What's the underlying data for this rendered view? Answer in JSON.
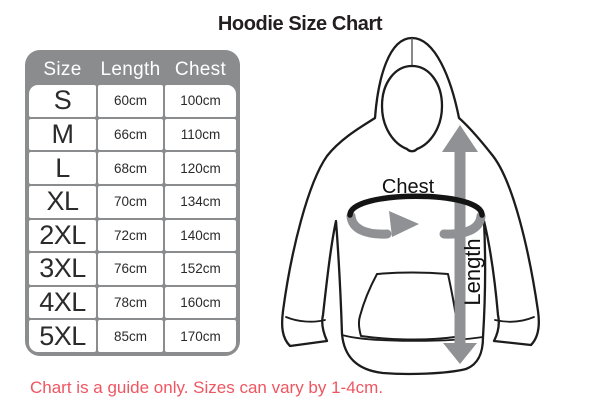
{
  "title": "Hoodie Size Chart",
  "table": {
    "headers": [
      "Size",
      "Length",
      "Chest"
    ],
    "rows": [
      [
        "S",
        "60cm",
        "100cm"
      ],
      [
        "M",
        "66cm",
        "110cm"
      ],
      [
        "L",
        "68cm",
        "120cm"
      ],
      [
        "XL",
        "70cm",
        "134cm"
      ],
      [
        "2XL",
        "72cm",
        "140cm"
      ],
      [
        "3XL",
        "76cm",
        "152cm"
      ],
      [
        "4XL",
        "78cm",
        "160cm"
      ],
      [
        "5XL",
        "85cm",
        "170cm"
      ]
    ]
  },
  "diagram": {
    "chest_label": "Chest",
    "length_label": "Length"
  },
  "footer": {
    "note": "Chart is a guide only. Sizes can vary by 1-4cm."
  },
  "colors": {
    "table_gray": "#8a8c8e",
    "arrow_gray": "#8f9194",
    "note_red": "#ee5661",
    "ink": "#231f20"
  },
  "chart_data": {
    "type": "table",
    "title": "Hoodie Size Chart",
    "columns": [
      "Size",
      "Length",
      "Chest"
    ],
    "rows": [
      {
        "size": "S",
        "length_cm": 60,
        "chest_cm": 100
      },
      {
        "size": "M",
        "length_cm": 66,
        "chest_cm": 110
      },
      {
        "size": "L",
        "length_cm": 68,
        "chest_cm": 120
      },
      {
        "size": "XL",
        "length_cm": 70,
        "chest_cm": 134
      },
      {
        "size": "2XL",
        "length_cm": 72,
        "chest_cm": 140
      },
      {
        "size": "3XL",
        "length_cm": 76,
        "chest_cm": 152
      },
      {
        "size": "4XL",
        "length_cm": 78,
        "chest_cm": 160
      },
      {
        "size": "5XL",
        "length_cm": 85,
        "chest_cm": 170
      }
    ],
    "note": "Chart is a guide only. Sizes can vary by 1-4cm."
  }
}
